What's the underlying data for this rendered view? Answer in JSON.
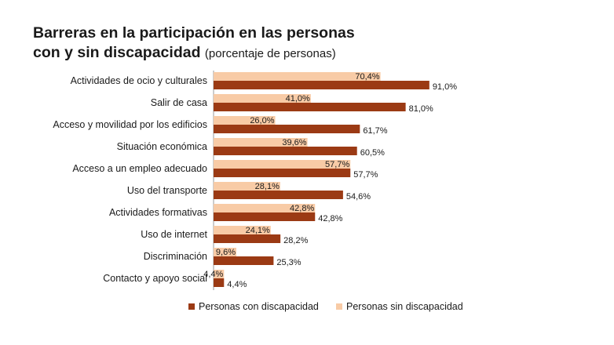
{
  "title": {
    "line1": "Barreras en la participación en las personas",
    "line2": "con y sin discapacidad",
    "suffix": "(porcentaje de personas)"
  },
  "colors": {
    "con": "#9B3A14",
    "sin": "#F8CBA6"
  },
  "chart_data": {
    "type": "bar",
    "orientation": "horizontal",
    "categories": [
      "Actividades de ocio y culturales",
      "Salir de casa",
      "Acceso y movilidad por los edificios",
      "Situación económica",
      "Acceso a un empleo adecuado",
      "Uso del transporte",
      "Actividades formativas",
      "Uso de internet",
      "Discriminación",
      "Contacto y apoyo social"
    ],
    "series": [
      {
        "name": "Personas sin discapacidad",
        "values": [
          70.4,
          41.0,
          26.0,
          39.6,
          57.7,
          28.1,
          42.8,
          24.1,
          9.6,
          4.4
        ],
        "labels": [
          "70,4%",
          "41,0%",
          "26,0%",
          "39,6%",
          "57,7%",
          "28,1%",
          "42,8%",
          "24,1%",
          "9,6%",
          "4,4%"
        ]
      },
      {
        "name": "Personas con discapacidad",
        "values": [
          91.0,
          81.0,
          61.7,
          60.5,
          57.7,
          54.6,
          42.8,
          28.2,
          25.3,
          4.4
        ],
        "labels": [
          "91,0%",
          "81,0%",
          "61,7%",
          "60,5%",
          "57,7%",
          "54,6%",
          "42,8%",
          "28,2%",
          "25,3%",
          "4,4%"
        ]
      }
    ],
    "xlim": [
      0,
      100
    ],
    "grid": false,
    "legend_position": "bottom",
    "legend": [
      "Personas con discapacidad",
      "Personas sin discapacidad"
    ]
  }
}
